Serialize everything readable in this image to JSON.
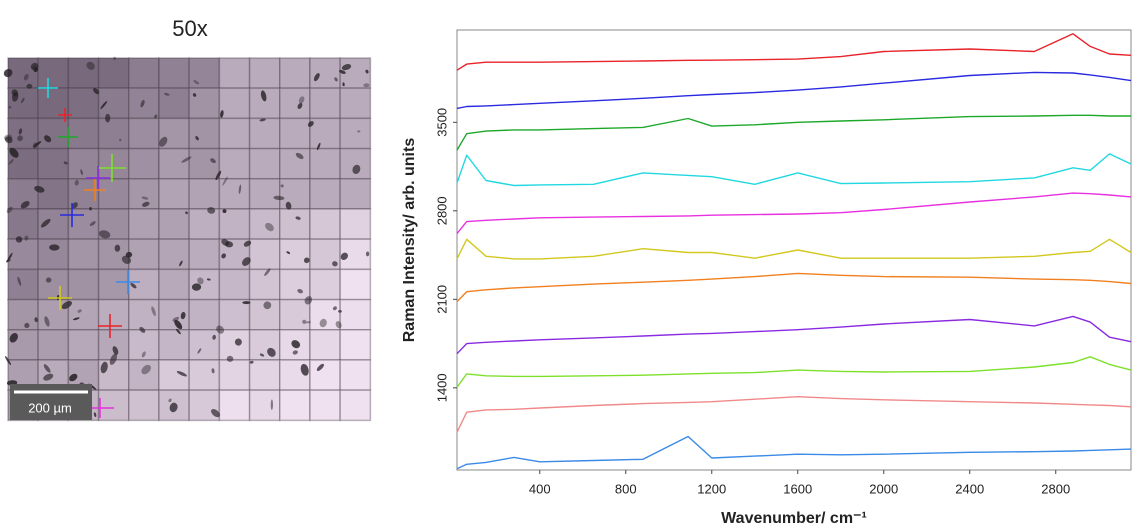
{
  "image": {
    "title": "50x",
    "scale_bar": "200 µm"
  },
  "chart_data": {
    "type": "line",
    "xlabel": "Wavenumber/ cm⁻¹",
    "ylabel": "Raman Intensity/ arb. units",
    "x": [
      15,
      60,
      150,
      280,
      400,
      650,
      880,
      1090,
      1200,
      1400,
      1600,
      1800,
      2000,
      2400,
      2700,
      2880,
      2960,
      3050,
      3150
    ],
    "xlim": [
      15,
      3150
    ],
    "xticks": [
      400,
      800,
      1200,
      1600,
      2000,
      2400,
      2800
    ],
    "ylim": [
      750,
      4230
    ],
    "yticks": [
      1400,
      2100,
      2800,
      3500
    ],
    "series": [
      {
        "color": "#e8232a",
        "values": [
          3912,
          3960,
          3975,
          3975,
          3975,
          3980,
          3985,
          3990,
          3991,
          3995,
          4000,
          4020,
          4060,
          4080,
          4060,
          4200,
          4100,
          4040,
          4030
        ]
      },
      {
        "color": "#2a2ae0",
        "values": [
          3610,
          3625,
          3630,
          3640,
          3650,
          3670,
          3690,
          3710,
          3720,
          3735,
          3755,
          3780,
          3810,
          3870,
          3895,
          3890,
          3875,
          3855,
          3830
        ]
      },
      {
        "color": "#1ea82a",
        "values": [
          3280,
          3410,
          3430,
          3440,
          3440,
          3450,
          3460,
          3530,
          3470,
          3480,
          3500,
          3510,
          3520,
          3545,
          3550,
          3555,
          3555,
          3550,
          3550
        ]
      },
      {
        "color": "#22d8e0",
        "values": [
          3020,
          3240,
          3040,
          3000,
          3005,
          3010,
          3100,
          3080,
          3070,
          3010,
          3100,
          3015,
          3020,
          3030,
          3060,
          3140,
          3120,
          3250,
          3170
        ]
      },
      {
        "color": "#e830e0",
        "values": [
          2620,
          2715,
          2725,
          2735,
          2745,
          2750,
          2755,
          2760,
          2765,
          2770,
          2775,
          2785,
          2810,
          2870,
          2910,
          2940,
          2935,
          2925,
          2910
        ]
      },
      {
        "color": "#d2c81e",
        "values": [
          2420,
          2575,
          2440,
          2420,
          2420,
          2440,
          2500,
          2470,
          2470,
          2425,
          2490,
          2425,
          2425,
          2425,
          2440,
          2470,
          2480,
          2575,
          2470
        ]
      },
      {
        "color": "#f08020",
        "values": [
          2082,
          2160,
          2175,
          2190,
          2200,
          2220,
          2235,
          2250,
          2260,
          2280,
          2305,
          2290,
          2280,
          2275,
          2260,
          2255,
          2250,
          2240,
          2225
        ]
      },
      {
        "color": "#8a2ae0",
        "values": [
          1670,
          1750,
          1760,
          1770,
          1780,
          1795,
          1810,
          1825,
          1830,
          1845,
          1860,
          1880,
          1905,
          1940,
          1890,
          1965,
          1920,
          1800,
          1765
        ]
      },
      {
        "color": "#7ee02a",
        "values": [
          1405,
          1510,
          1495,
          1490,
          1490,
          1495,
          1500,
          1510,
          1515,
          1520,
          1540,
          1530,
          1525,
          1530,
          1565,
          1600,
          1645,
          1585,
          1540
        ]
      },
      {
        "color": "#f08a8a",
        "values": [
          1048,
          1207,
          1225,
          1230,
          1240,
          1260,
          1275,
          1285,
          1290,
          1310,
          1330,
          1315,
          1305,
          1290,
          1280,
          1270,
          1265,
          1260,
          1250
        ]
      },
      {
        "color": "#3a8ae8",
        "values": [
          760,
          795,
          810,
          850,
          815,
          825,
          835,
          1015,
          845,
          860,
          875,
          870,
          875,
          890,
          895,
          900,
          905,
          910,
          915
        ]
      }
    ]
  }
}
